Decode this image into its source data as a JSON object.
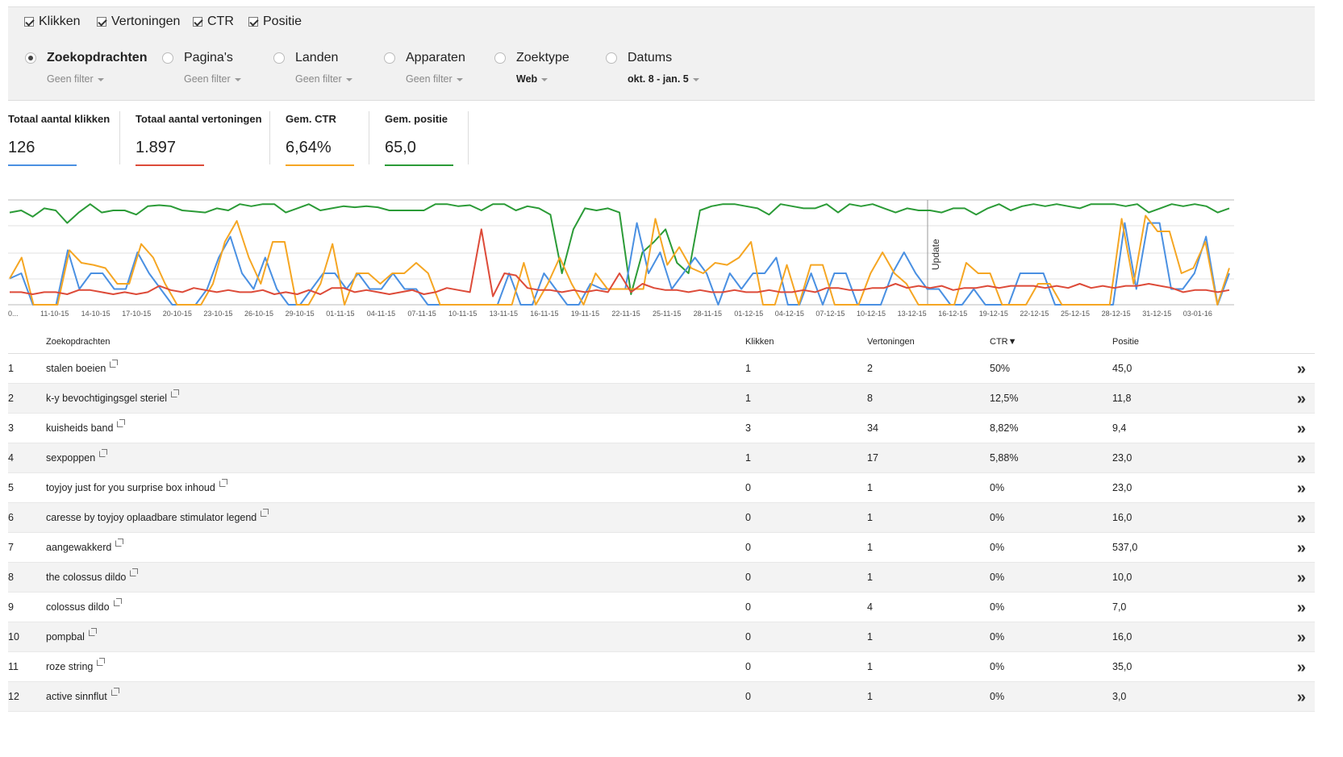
{
  "metrics": [
    {
      "label": "Klikken",
      "checked": true
    },
    {
      "label": "Vertoningen",
      "checked": true
    },
    {
      "label": "CTR",
      "checked": true
    },
    {
      "label": "Positie",
      "checked": true
    }
  ],
  "dimensions": [
    {
      "label": "Zoekopdrachten",
      "filter": "Geen filter",
      "selected": true
    },
    {
      "label": "Pagina's",
      "filter": "Geen filter",
      "selected": false
    },
    {
      "label": "Landen",
      "filter": "Geen filter",
      "selected": false
    },
    {
      "label": "Apparaten",
      "filter": "Geen filter",
      "selected": false
    },
    {
      "label": "Zoektype",
      "filter": "Web",
      "selected": false
    },
    {
      "label": "Datums",
      "filter": "okt. 8 - jan. 5",
      "selected": false
    }
  ],
  "totals": [
    {
      "label": "Totaal aantal klikken",
      "value": "126",
      "color": "#4a90e2"
    },
    {
      "label": "Totaal aantal vertoningen",
      "value": "1.897",
      "color": "#dd4b39"
    },
    {
      "label": "Gem. CTR",
      "value": "6,64%",
      "color": "#f5a623"
    },
    {
      "label": "Gem. positie",
      "value": "65,0",
      "color": "#2b9b37"
    }
  ],
  "chart_data": {
    "type": "line",
    "x_labels": [
      "0...",
      "11-10-15",
      "14-10-15",
      "17-10-15",
      "20-10-15",
      "23-10-15",
      "26-10-15",
      "29-10-15",
      "01-11-15",
      "04-11-15",
      "07-11-15",
      "10-11-15",
      "13-11-15",
      "16-11-15",
      "19-11-15",
      "22-11-15",
      "25-11-15",
      "28-11-15",
      "01-12-15",
      "04-12-15",
      "07-12-15",
      "10-12-15",
      "13-12-15",
      "16-12-15",
      "19-12-15",
      "22-12-15",
      "25-12-15",
      "28-12-15",
      "31-12-15",
      "03-01-16"
    ],
    "annotation": "Update",
    "series": [
      {
        "key": "positie",
        "color": "#2b9b37",
        "values": [
          0.88,
          0.9,
          0.84,
          0.92,
          0.9,
          0.78,
          0.88,
          0.96,
          0.88,
          0.9,
          0.9,
          0.86,
          0.94,
          0.95,
          0.94,
          0.9,
          0.89,
          0.88,
          0.92,
          0.9,
          0.96,
          0.94,
          0.96,
          0.96,
          0.88,
          0.92,
          0.96,
          0.9,
          0.92,
          0.94,
          0.93,
          0.94,
          0.93,
          0.9,
          0.9,
          0.9,
          0.9,
          0.96,
          0.96,
          0.94,
          0.95,
          0.9,
          0.96,
          0.96,
          0.9,
          0.94,
          0.92,
          0.86,
          0.3,
          0.72,
          0.92,
          0.9,
          0.92,
          0.88,
          0.1,
          0.5,
          0.6,
          0.72,
          0.4,
          0.3,
          0.9,
          0.94,
          0.96,
          0.96,
          0.94,
          0.92,
          0.86,
          0.96,
          0.94,
          0.92,
          0.92,
          0.96,
          0.88,
          0.96,
          0.94,
          0.96,
          0.92,
          0.88,
          0.92,
          0.9,
          0.9,
          0.88,
          0.92,
          0.92,
          0.86,
          0.92,
          0.96,
          0.9,
          0.94,
          0.96,
          0.94,
          0.96,
          0.94,
          0.92,
          0.96,
          0.96,
          0.96,
          0.94,
          0.96,
          0.88,
          0.92,
          0.96,
          0.94,
          0.96,
          0.94,
          0.88,
          0.92
        ]
      },
      {
        "key": "klikken",
        "color": "#4a90e2",
        "values": [
          0.25,
          0.3,
          0,
          0,
          0,
          0.52,
          0.15,
          0.3,
          0.3,
          0.15,
          0.15,
          0.5,
          0.3,
          0.15,
          0,
          0,
          0,
          0.15,
          0.45,
          0.65,
          0.3,
          0.15,
          0.45,
          0.15,
          0,
          0,
          0.15,
          0.3,
          0.3,
          0.15,
          0.3,
          0.15,
          0.15,
          0.3,
          0.15,
          0.15,
          0,
          0,
          0,
          0,
          0,
          0,
          0,
          0.3,
          0,
          0,
          0.3,
          0.15,
          0,
          0,
          0.2,
          0.15,
          0.15,
          0.15,
          0.78,
          0.3,
          0.5,
          0.15,
          0.3,
          0.45,
          0.3,
          0,
          0.3,
          0.15,
          0.3,
          0.3,
          0.45,
          0,
          0,
          0.3,
          0,
          0.3,
          0.3,
          0,
          0,
          0,
          0.3,
          0.5,
          0.3,
          0.15,
          0.15,
          0,
          0,
          0.15,
          0,
          0,
          0,
          0.3,
          0.3,
          0.3,
          0,
          0,
          0,
          0,
          0,
          0,
          0.78,
          0.15,
          0.78,
          0.78,
          0.15,
          0.15,
          0.3,
          0.65,
          0,
          0.3
        ]
      },
      {
        "key": "ctr",
        "color": "#f5a623",
        "values": [
          0.25,
          0.45,
          0,
          0,
          0,
          0.52,
          0.4,
          0.38,
          0.35,
          0.2,
          0.2,
          0.58,
          0.45,
          0.2,
          0,
          0,
          0,
          0.2,
          0.6,
          0.8,
          0.45,
          0.2,
          0.6,
          0.6,
          0,
          0,
          0.2,
          0.58,
          0,
          0.3,
          0.3,
          0.2,
          0.3,
          0.3,
          0.4,
          0.3,
          0,
          0,
          0,
          0,
          0,
          0,
          0,
          0.4,
          0,
          0.2,
          0.45,
          0.2,
          0,
          0.3,
          0.15,
          0.15,
          0.15,
          0.15,
          0.82,
          0.38,
          0.55,
          0.35,
          0.3,
          0.4,
          0.38,
          0.45,
          0.6,
          0,
          0,
          0.38,
          0,
          0.38,
          0.38,
          0,
          0,
          0,
          0.3,
          0.5,
          0.3,
          0.2,
          0,
          0,
          0,
          0,
          0.4,
          0.3,
          0.3,
          0,
          0,
          0,
          0.2,
          0.2,
          0,
          0,
          0,
          0,
          0,
          0.82,
          0.2,
          0.85,
          0.7,
          0.7,
          0.3,
          0.35,
          0.6,
          0,
          0.35
        ]
      },
      {
        "key": "vertoningen",
        "color": "#dd4b39",
        "values": [
          0.12,
          0.12,
          0.1,
          0.12,
          0.12,
          0.1,
          0.14,
          0.14,
          0.12,
          0.1,
          0.12,
          0.1,
          0.12,
          0.18,
          0.14,
          0.12,
          0.16,
          0.14,
          0.12,
          0.14,
          0.12,
          0.12,
          0.14,
          0.1,
          0.12,
          0.1,
          0.14,
          0.1,
          0.16,
          0.16,
          0.12,
          0.14,
          0.12,
          0.1,
          0.12,
          0.14,
          0.1,
          0.12,
          0.16,
          0.14,
          0.12,
          0.72,
          0.08,
          0.3,
          0.28,
          0.16,
          0.14,
          0.14,
          0.12,
          0.14,
          0.12,
          0.14,
          0.12,
          0.3,
          0.12,
          0.2,
          0.16,
          0.14,
          0.14,
          0.12,
          0.14,
          0.12,
          0.12,
          0.14,
          0.12,
          0.12,
          0.14,
          0.12,
          0.12,
          0.14,
          0.12,
          0.16,
          0.16,
          0.14,
          0.14,
          0.16,
          0.16,
          0.2,
          0.16,
          0.18,
          0.16,
          0.18,
          0.14,
          0.16,
          0.16,
          0.18,
          0.16,
          0.18,
          0.18,
          0.18,
          0.16,
          0.18,
          0.16,
          0.2,
          0.16,
          0.18,
          0.16,
          0.18,
          0.18,
          0.2,
          0.18,
          0.16,
          0.12,
          0.14,
          0.14,
          0.12,
          0.14
        ]
      }
    ]
  },
  "table": {
    "headers": {
      "query": "Zoekopdrachten",
      "clicks": "Klikken",
      "impressions": "Vertoningen",
      "ctr": "CTR▼",
      "position": "Positie"
    },
    "rows": [
      {
        "n": "1",
        "query": "stalen boeien",
        "clicks": "1",
        "impressions": "2",
        "ctr": "50%",
        "position": "45,0"
      },
      {
        "n": "2",
        "query": "k-y bevochtigingsgel steriel",
        "clicks": "1",
        "impressions": "8",
        "ctr": "12,5%",
        "position": "11,8"
      },
      {
        "n": "3",
        "query": "kuisheids band",
        "clicks": "3",
        "impressions": "34",
        "ctr": "8,82%",
        "position": "9,4"
      },
      {
        "n": "4",
        "query": "sexpoppen",
        "clicks": "1",
        "impressions": "17",
        "ctr": "5,88%",
        "position": "23,0"
      },
      {
        "n": "5",
        "query": "toyjoy just for you surprise box inhoud",
        "clicks": "0",
        "impressions": "1",
        "ctr": "0%",
        "position": "23,0"
      },
      {
        "n": "6",
        "query": "caresse by toyjoy oplaadbare stimulator legend",
        "clicks": "0",
        "impressions": "1",
        "ctr": "0%",
        "position": "16,0"
      },
      {
        "n": "7",
        "query": "aangewakkerd",
        "clicks": "0",
        "impressions": "1",
        "ctr": "0%",
        "position": "537,0"
      },
      {
        "n": "8",
        "query": "the colossus dildo",
        "clicks": "0",
        "impressions": "1",
        "ctr": "0%",
        "position": "10,0"
      },
      {
        "n": "9",
        "query": "colossus dildo",
        "clicks": "0",
        "impressions": "4",
        "ctr": "0%",
        "position": "7,0"
      },
      {
        "n": "10",
        "query": "pompbal",
        "clicks": "0",
        "impressions": "1",
        "ctr": "0%",
        "position": "16,0"
      },
      {
        "n": "11",
        "query": "roze string",
        "clicks": "0",
        "impressions": "1",
        "ctr": "0%",
        "position": "35,0"
      },
      {
        "n": "12",
        "query": "active sinnflut",
        "clicks": "0",
        "impressions": "1",
        "ctr": "0%",
        "position": "3,0"
      }
    ]
  }
}
